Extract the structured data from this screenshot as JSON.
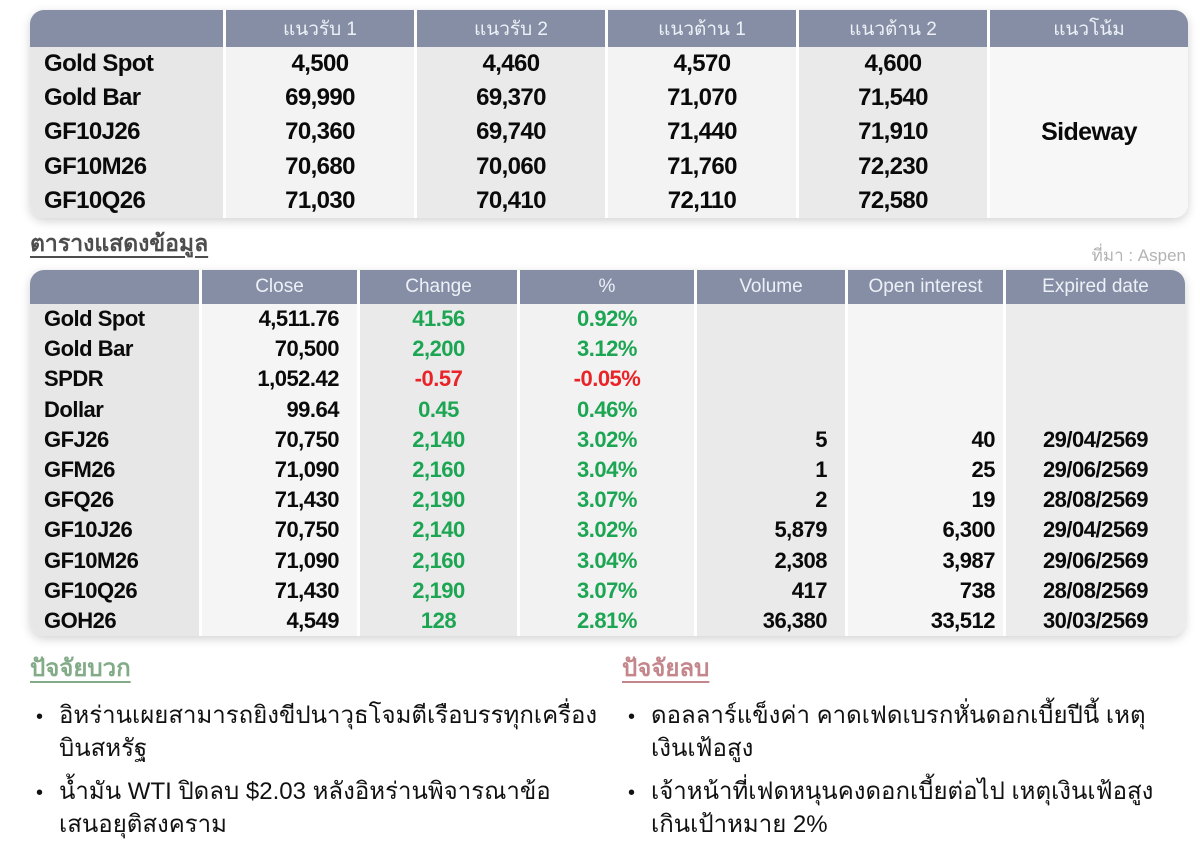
{
  "colors": {
    "up": "#1ca653",
    "down": "#ea2328",
    "header_bg": "#858ea5",
    "positive_title": "#83ab88",
    "negative_title": "#c4868b"
  },
  "levels_table": {
    "headers": [
      "",
      "แนวรับ 1",
      "แนวรับ 2",
      "แนวต้าน 1",
      "แนวต้าน 2",
      "แนวโน้ม"
    ],
    "trend": "Sideway",
    "rows": [
      {
        "name": "Gold Spot",
        "s1": "4,500",
        "s2": "4,460",
        "r1": "4,570",
        "r2": "4,600"
      },
      {
        "name": "Gold Bar",
        "s1": "69,990",
        "s2": "69,370",
        "r1": "71,070",
        "r2": "71,540"
      },
      {
        "name": "GF10J26",
        "s1": "70,360",
        "s2": "69,740",
        "r1": "71,440",
        "r2": "71,910"
      },
      {
        "name": "GF10M26",
        "s1": "70,680",
        "s2": "70,060",
        "r1": "71,760",
        "r2": "72,230"
      },
      {
        "name": "GF10Q26",
        "s1": "71,030",
        "s2": "70,410",
        "r1": "72,110",
        "r2": "72,580"
      }
    ]
  },
  "data_section": {
    "title": "ตารางแสดงข้อมูล",
    "source": "ที่มา : Aspen",
    "table": {
      "headers": [
        "",
        "Close",
        "Change",
        "%",
        "Volume",
        "Open interest",
        "Expired date"
      ],
      "rows": [
        {
          "name": "Gold Spot",
          "close": "4,511.76",
          "change": "41.56",
          "pct": "0.92%",
          "volume": "",
          "oi": "",
          "expired": "",
          "dir": "up"
        },
        {
          "name": "Gold Bar",
          "close": "70,500",
          "change": "2,200",
          "pct": "3.12%",
          "volume": "",
          "oi": "",
          "expired": "",
          "dir": "up"
        },
        {
          "name": "SPDR",
          "close": "1,052.42",
          "change": "-0.57",
          "pct": "-0.05%",
          "volume": "",
          "oi": "",
          "expired": "",
          "dir": "down"
        },
        {
          "name": "Dollar",
          "close": "99.64",
          "change": "0.45",
          "pct": "0.46%",
          "volume": "",
          "oi": "",
          "expired": "",
          "dir": "up"
        },
        {
          "name": "GFJ26",
          "close": "70,750",
          "change": "2,140",
          "pct": "3.02%",
          "volume": "5",
          "oi": "40",
          "expired": "29/04/2569",
          "dir": "up"
        },
        {
          "name": "GFM26",
          "close": "71,090",
          "change": "2,160",
          "pct": "3.04%",
          "volume": "1",
          "oi": "25",
          "expired": "29/06/2569",
          "dir": "up"
        },
        {
          "name": "GFQ26",
          "close": "71,430",
          "change": "2,190",
          "pct": "3.07%",
          "volume": "2",
          "oi": "19",
          "expired": "28/08/2569",
          "dir": "up"
        },
        {
          "name": "GF10J26",
          "close": "70,750",
          "change": "2,140",
          "pct": "3.02%",
          "volume": "5,879",
          "oi": "6,300",
          "expired": "29/04/2569",
          "dir": "up"
        },
        {
          "name": "GF10M26",
          "close": "71,090",
          "change": "2,160",
          "pct": "3.04%",
          "volume": "2,308",
          "oi": "3,987",
          "expired": "29/06/2569",
          "dir": "up"
        },
        {
          "name": "GF10Q26",
          "close": "71,430",
          "change": "2,190",
          "pct": "3.07%",
          "volume": "417",
          "oi": "738",
          "expired": "28/08/2569",
          "dir": "up"
        },
        {
          "name": "GOH26",
          "close": "4,549",
          "change": "128",
          "pct": "2.81%",
          "volume": "36,380",
          "oi": "33,512",
          "expired": "30/03/2569",
          "dir": "up"
        }
      ]
    }
  },
  "factors": {
    "positive": {
      "title": "ปัจจัยบวก",
      "bullet": "•",
      "items": [
        "อิหร่านเผยสามารถยิงขีปนาวุธโจมตีเรือบรรทุกเครื่องบินสหรัฐ",
        "น้ำมัน WTI ปิดลบ $2.03 หลังอิหร่านพิจารณาข้อเสนอยุติสงคราม"
      ]
    },
    "negative": {
      "title": "ปัจจัยลบ",
      "bullet": "•",
      "items": [
        "ดอลลาร์แข็งค่า คาดเฟดเบรกหั่นดอกเบี้ยปีนี้ เหตุเงินเฟ้อสูง",
        "เจ้าหน้าที่เฟดหนุนคงดอกเบี้ยต่อไป เหตุเงินเฟ้อสูงเกินเป้าหมาย 2%"
      ]
    }
  }
}
